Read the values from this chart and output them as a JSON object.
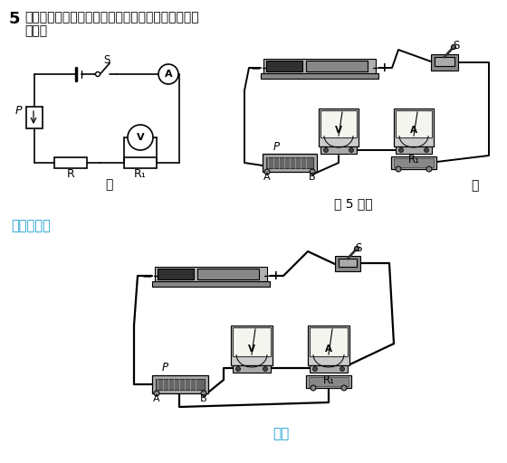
{
  "white": "#ffffff",
  "black": "#000000",
  "light_gray": "#cccccc",
  "mid_gray": "#999999",
  "dark_gray": "#555555",
  "very_dark": "#222222",
  "bg_gray": "#b0b0b0",
  "blue_text": "#1a9fd4",
  "title_number": "5",
  "title_line1": "根据图甲，用笔画线代替导线，将图乙实物电路连接",
  "title_line2": "完整．",
  "label_jia": "甲",
  "label_yi": "乙",
  "label_caption": "第 5 题图",
  "label_ruju": "如答图所示",
  "label_datu": "答图",
  "label_R": "R",
  "label_R1": "R₁",
  "label_P": "P",
  "label_S": "S",
  "label_A_pt": "A",
  "label_B_pt": "B",
  "label_V": "V",
  "label_Amm": "A",
  "plus": "+",
  "minus": "−"
}
